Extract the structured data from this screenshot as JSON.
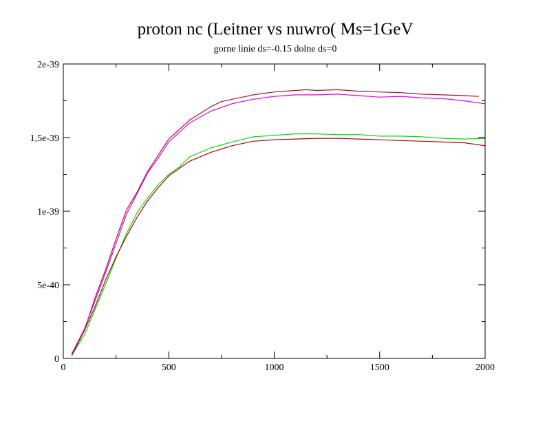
{
  "chart_data": {
    "type": "line",
    "title": "proton nc (Leitner vs nuwro( Ms=1GeV",
    "subtitle": "gorne linie ds=-0.15 dolne ds=0",
    "xlabel": "",
    "ylabel": "",
    "xlim": [
      0,
      2000
    ],
    "ylim": [
      0,
      2e-39
    ],
    "grid": false,
    "x_ticks": [
      {
        "value": 0,
        "label": "0"
      },
      {
        "value": 500,
        "label": "500"
      },
      {
        "value": 1000,
        "label": "1000"
      },
      {
        "value": 1500,
        "label": "1500"
      },
      {
        "value": 2000,
        "label": "2000"
      }
    ],
    "y_ticks": [
      {
        "value": 0,
        "label": "0"
      },
      {
        "value": 5e-40,
        "label": "5e-40"
      },
      {
        "value": 1e-39,
        "label": "1e-39"
      },
      {
        "value": 1.5e-39,
        "label": "1,5e-39"
      },
      {
        "value": 2e-39,
        "label": "2e-39"
      }
    ],
    "series": [
      {
        "color": "#a8102a",
        "x": [
          40,
          100,
          150,
          200,
          250,
          300,
          350,
          400,
          450,
          500,
          600,
          700,
          750,
          800,
          900,
          1000,
          1100,
          1150,
          1200,
          1300,
          1400,
          1500,
          1600,
          1700,
          1800,
          1900,
          1970
        ],
        "values": [
          3e-41,
          1.9e-40,
          4.1e-40,
          6e-40,
          8.1e-40,
          1.01e-39,
          1.13e-39,
          1.27e-39,
          1.38e-39,
          1.49e-39,
          1.62e-39,
          1.71e-39,
          1.745e-39,
          1.76e-39,
          1.79e-39,
          1.81e-39,
          1.82e-39,
          1.825e-39,
          1.82e-39,
          1.825e-39,
          1.815e-39,
          1.81e-39,
          1.805e-39,
          1.795e-39,
          1.79e-39,
          1.785e-39,
          1.78e-39
        ]
      },
      {
        "color": "#e000e0",
        "x": [
          40,
          100,
          150,
          200,
          250,
          300,
          350,
          400,
          450,
          500,
          600,
          700,
          800,
          900,
          1000,
          1100,
          1200,
          1300,
          1400,
          1500,
          1600,
          1700,
          1800,
          1900,
          2000
        ],
        "values": [
          3e-41,
          2e-40,
          3.9e-40,
          5.8e-40,
          7.8e-40,
          9.8e-40,
          1.12e-39,
          1.26e-39,
          1.36e-39,
          1.47e-39,
          1.6e-39,
          1.68e-39,
          1.73e-39,
          1.76e-39,
          1.78e-39,
          1.79e-39,
          1.79e-39,
          1.795e-39,
          1.785e-39,
          1.775e-39,
          1.78e-39,
          1.77e-39,
          1.765e-39,
          1.75e-39,
          1.73e-39
        ]
      },
      {
        "color": "#00dd00",
        "x": [
          40,
          100,
          150,
          200,
          250,
          300,
          350,
          400,
          450,
          500,
          550,
          600,
          700,
          800,
          900,
          1000,
          1100,
          1200,
          1300,
          1400,
          1500,
          1600,
          1700,
          1800,
          1900,
          2000
        ],
        "values": [
          2e-41,
          1.6e-40,
          3.3e-40,
          5e-40,
          6.8e-40,
          8.5e-40,
          9.9e-40,
          1.09e-39,
          1.18e-39,
          1.25e-39,
          1.3e-39,
          1.37e-39,
          1.43e-39,
          1.47e-39,
          1.505e-39,
          1.515e-39,
          1.525e-39,
          1.525e-39,
          1.52e-39,
          1.52e-39,
          1.51e-39,
          1.51e-39,
          1.505e-39,
          1.495e-39,
          1.49e-39,
          1.495e-39
        ]
      },
      {
        "color": "#b00010",
        "x": [
          40,
          100,
          150,
          200,
          250,
          300,
          350,
          400,
          450,
          500,
          550,
          600,
          700,
          800,
          900,
          1000,
          1100,
          1200,
          1300,
          1400,
          1500,
          1600,
          1700,
          1800,
          1900,
          2000
        ],
        "values": [
          2e-41,
          1.9e-40,
          3.5e-40,
          5.3e-40,
          6.9e-40,
          8.3e-40,
          9.6e-40,
          1.07e-39,
          1.16e-39,
          1.24e-39,
          1.29e-39,
          1.34e-39,
          1.4e-39,
          1.445e-39,
          1.475e-39,
          1.485e-39,
          1.49e-39,
          1.495e-39,
          1.495e-39,
          1.49e-39,
          1.485e-39,
          1.48e-39,
          1.475e-39,
          1.47e-39,
          1.465e-39,
          1.445e-39
        ]
      }
    ]
  }
}
